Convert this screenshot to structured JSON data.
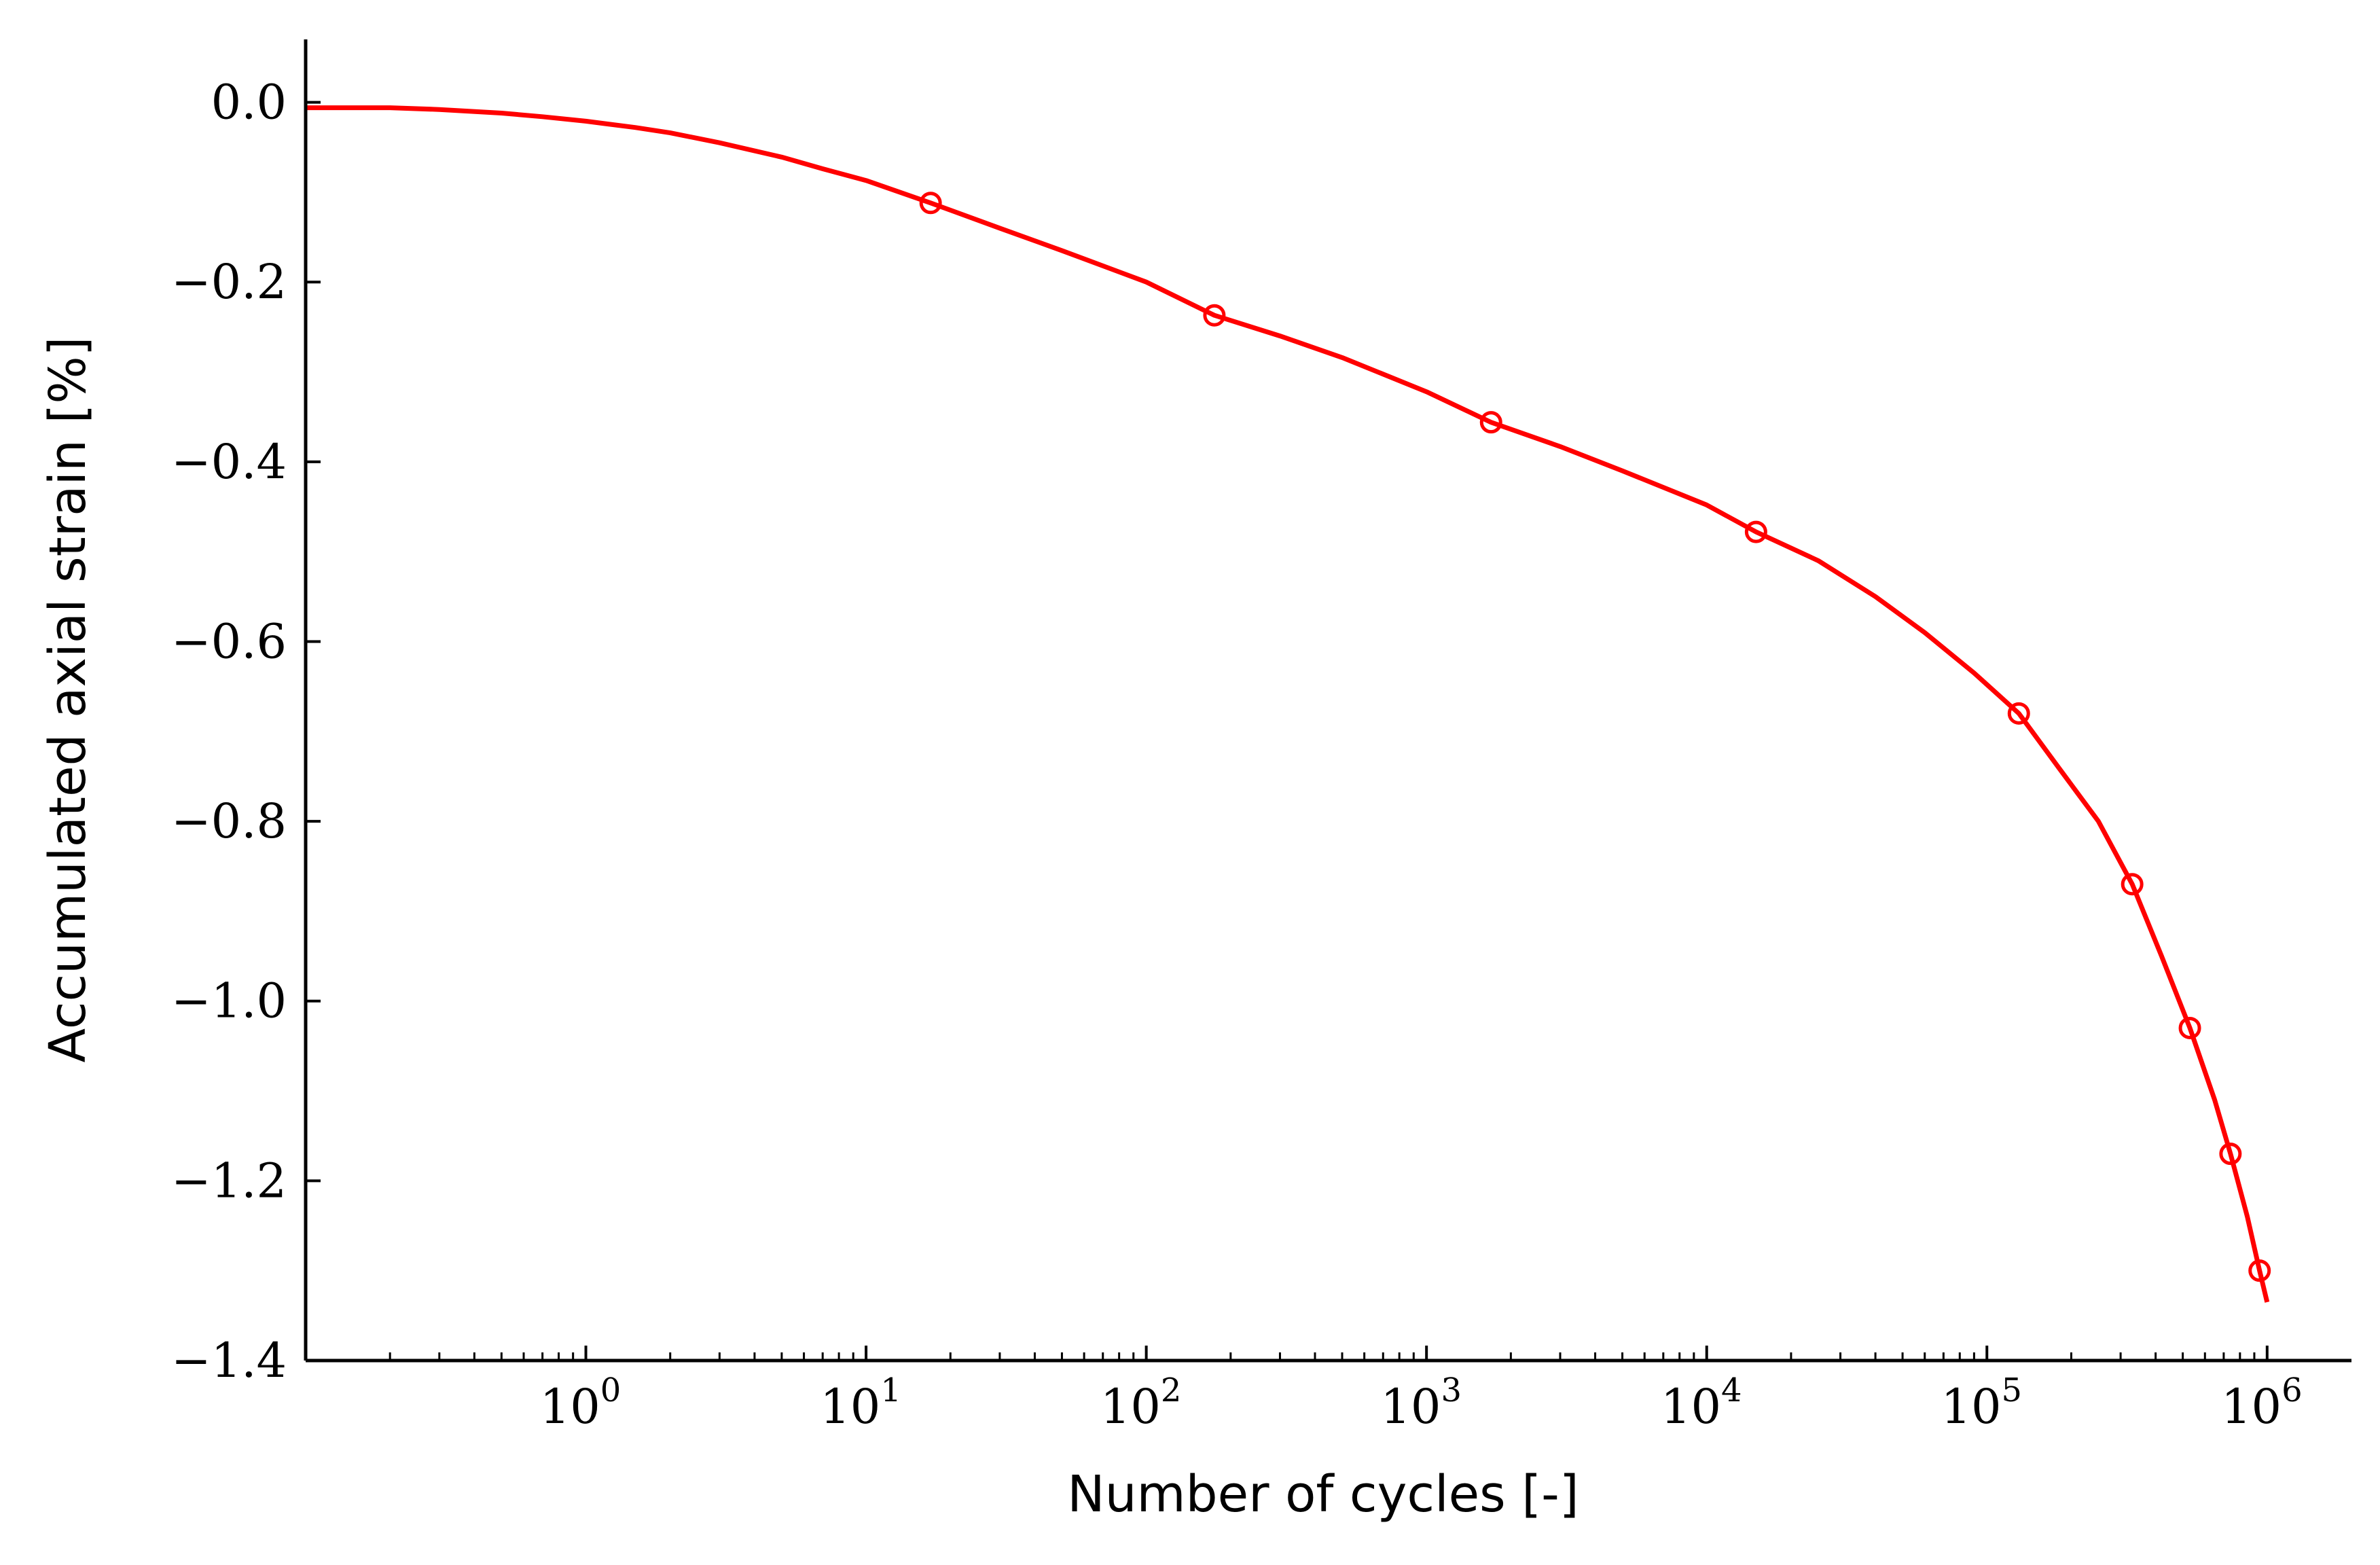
{
  "chart_data": {
    "type": "line",
    "xlabel": "Number of cycles [-]",
    "ylabel": "Accumulated axial strain [%]",
    "xscale": "log",
    "xlim": [
      0.1,
      2000000
    ],
    "ylim": [
      -1.4,
      0.07
    ],
    "grid": false,
    "color": "#ff0000",
    "x_ticks": [
      {
        "base": "10",
        "exp": "0",
        "value": 1
      },
      {
        "base": "10",
        "exp": "1",
        "value": 10
      },
      {
        "base": "10",
        "exp": "2",
        "value": 100
      },
      {
        "base": "10",
        "exp": "3",
        "value": 1000
      },
      {
        "base": "10",
        "exp": "4",
        "value": 10000
      },
      {
        "base": "10",
        "exp": "5",
        "value": 100000
      },
      {
        "base": "10",
        "exp": "6",
        "value": 1000000
      }
    ],
    "y_ticks": [
      {
        "label": "0.0",
        "value": 0.0
      },
      {
        "label": "−0.2",
        "value": -0.2
      },
      {
        "label": "−0.4",
        "value": -0.4
      },
      {
        "label": "−0.6",
        "value": -0.6
      },
      {
        "label": "−0.8",
        "value": -0.8
      },
      {
        "label": "−1.0",
        "value": -1.0
      },
      {
        "label": "−1.2",
        "value": -1.2
      },
      {
        "label": "−1.4",
        "value": -1.4
      }
    ],
    "series": [
      {
        "style": "line",
        "x": [
          0.1,
          0.2,
          0.3,
          0.5,
          0.7,
          1,
          1.5,
          2,
          3,
          5,
          7,
          10,
          17,
          30,
          50,
          100,
          175,
          300,
          500,
          1000,
          1700,
          3000,
          5000,
          10000,
          15000,
          25000,
          40000,
          60000,
          90000,
          130000,
          180000,
          250000,
          330000,
          420000,
          530000,
          650000,
          740000,
          850000,
          940000,
          1000000
        ],
        "y": [
          -0.006,
          -0.006,
          -0.008,
          -0.012,
          -0.016,
          -0.021,
          -0.028,
          -0.034,
          -0.045,
          -0.061,
          -0.074,
          -0.087,
          -0.112,
          -0.14,
          -0.165,
          -0.2,
          -0.237,
          -0.26,
          -0.284,
          -0.322,
          -0.356,
          -0.383,
          -0.41,
          -0.448,
          -0.478,
          -0.51,
          -0.55,
          -0.59,
          -0.635,
          -0.68,
          -0.74,
          -0.8,
          -0.87,
          -0.95,
          -1.03,
          -1.11,
          -1.17,
          -1.24,
          -1.3,
          -1.335
        ]
      },
      {
        "style": "markers",
        "marker": "open-circle",
        "x": [
          17,
          175,
          1700,
          15000,
          130000,
          330000,
          530000,
          740000,
          940000
        ],
        "y": [
          -0.112,
          -0.237,
          -0.356,
          -0.478,
          -0.68,
          -0.87,
          -1.03,
          -1.17,
          -1.3
        ]
      }
    ]
  }
}
